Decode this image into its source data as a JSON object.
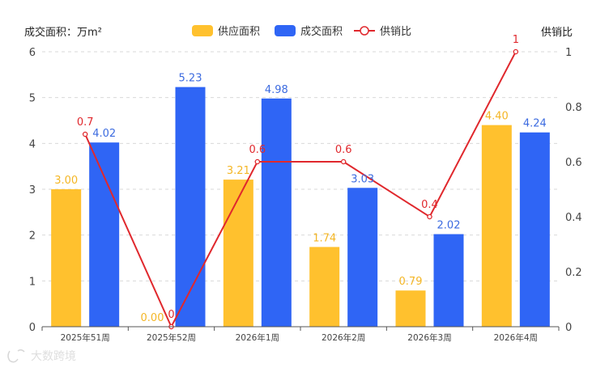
{
  "chart_data": {
    "type": "bar",
    "left_axis_title": "成交面积：万m²",
    "right_axis_title": "供销比",
    "categories": [
      "2025年51周",
      "2025年52周",
      "2026年1周",
      "2026年2周",
      "2026年3周",
      "2026年4周"
    ],
    "series": [
      {
        "name": "供应面积",
        "type": "bar",
        "axis": "left",
        "color": "#FFC12E",
        "label_color": "#F4B625",
        "values": [
          3.0,
          0.0,
          3.21,
          1.74,
          0.79,
          4.4
        ],
        "labels": [
          "3.00",
          "0.00",
          "3.21",
          "1.74",
          "0.79",
          "4.40"
        ]
      },
      {
        "name": "成交面积",
        "type": "bar",
        "axis": "left",
        "color": "#2F65F5",
        "label_color": "#3C6BE0",
        "values": [
          4.02,
          5.23,
          4.98,
          3.03,
          2.02,
          4.24
        ],
        "labels": [
          "4.02",
          "5.23",
          "4.98",
          "3.03",
          "2.02",
          "4.24"
        ]
      },
      {
        "name": "供销比",
        "type": "line",
        "axis": "right",
        "color": "#E0282D",
        "values": [
          0.7,
          0,
          0.6,
          0.6,
          0.4,
          1
        ],
        "labels": [
          "0.7",
          "0",
          "0.6",
          "0.6",
          "0.4",
          "1"
        ]
      }
    ],
    "left_axis": {
      "min": 0,
      "max": 6,
      "ticks": [
        "0",
        "1",
        "2",
        "3",
        "4",
        "5",
        "6"
      ]
    },
    "right_axis": {
      "min": 0,
      "max": 1,
      "ticks": [
        "0",
        "0.2",
        "0.4",
        "0.6",
        "0.8",
        "1"
      ]
    },
    "grid": "dashed horizontal",
    "legend_position": "top-center",
    "watermark": "大数跨境"
  }
}
